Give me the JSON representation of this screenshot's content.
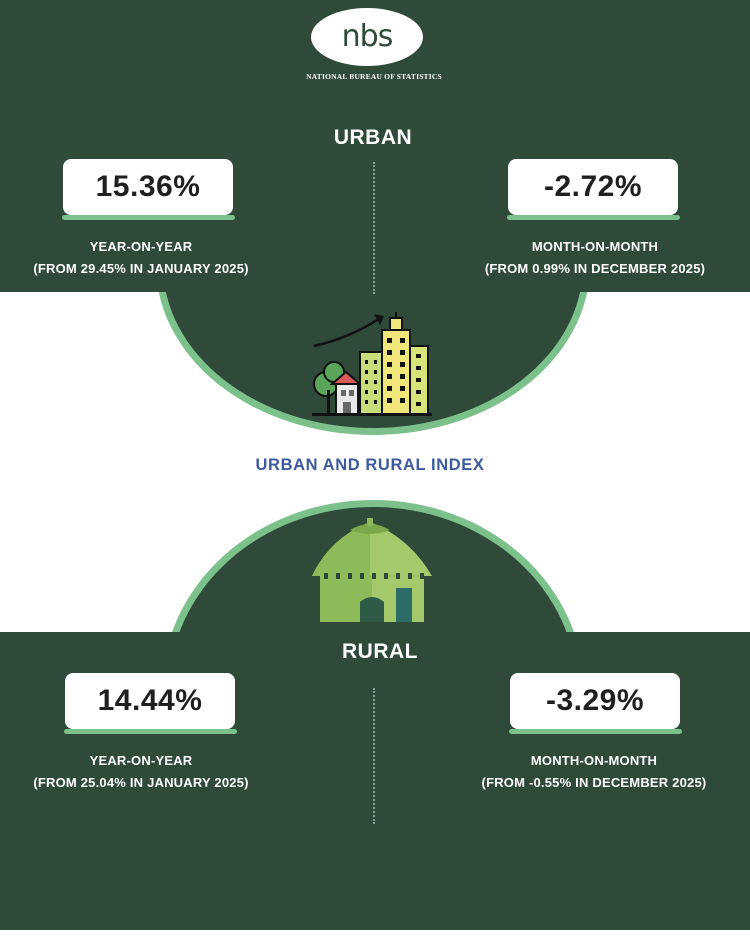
{
  "logo": {
    "text": "nbs",
    "subtitle": "NATIONAL BUREAU OF STATISTICS"
  },
  "urban": {
    "title": "URBAN",
    "icon": "city-buildings-growth-icon",
    "year_on_year": {
      "value": "15.36%",
      "label": "YEAR-ON-YEAR",
      "comparison": "(FROM 29.45% IN JANUARY 2025)"
    },
    "month_on_month": {
      "value": "-2.72%",
      "label": "MONTH-ON-MONTH",
      "comparison": "(FROM 0.99% IN DECEMBER 2025)"
    }
  },
  "index_title": "URBAN AND RURAL INDEX",
  "rural": {
    "title": "RURAL",
    "icon": "thatched-hut-icon",
    "year_on_year": {
      "value": "14.44%",
      "label": "YEAR-ON-YEAR",
      "comparison": "(FROM 25.04% IN JANUARY 2025)"
    },
    "month_on_month": {
      "value": "-3.29%",
      "label": "MONTH-ON-MONTH",
      "comparison": "(FROM -0.55% IN DECEMBER 2025)"
    }
  },
  "colors": {
    "background_dark": "#2f4a38",
    "accent_green": "#7cc08c",
    "title_blue": "#3d5a9c"
  }
}
